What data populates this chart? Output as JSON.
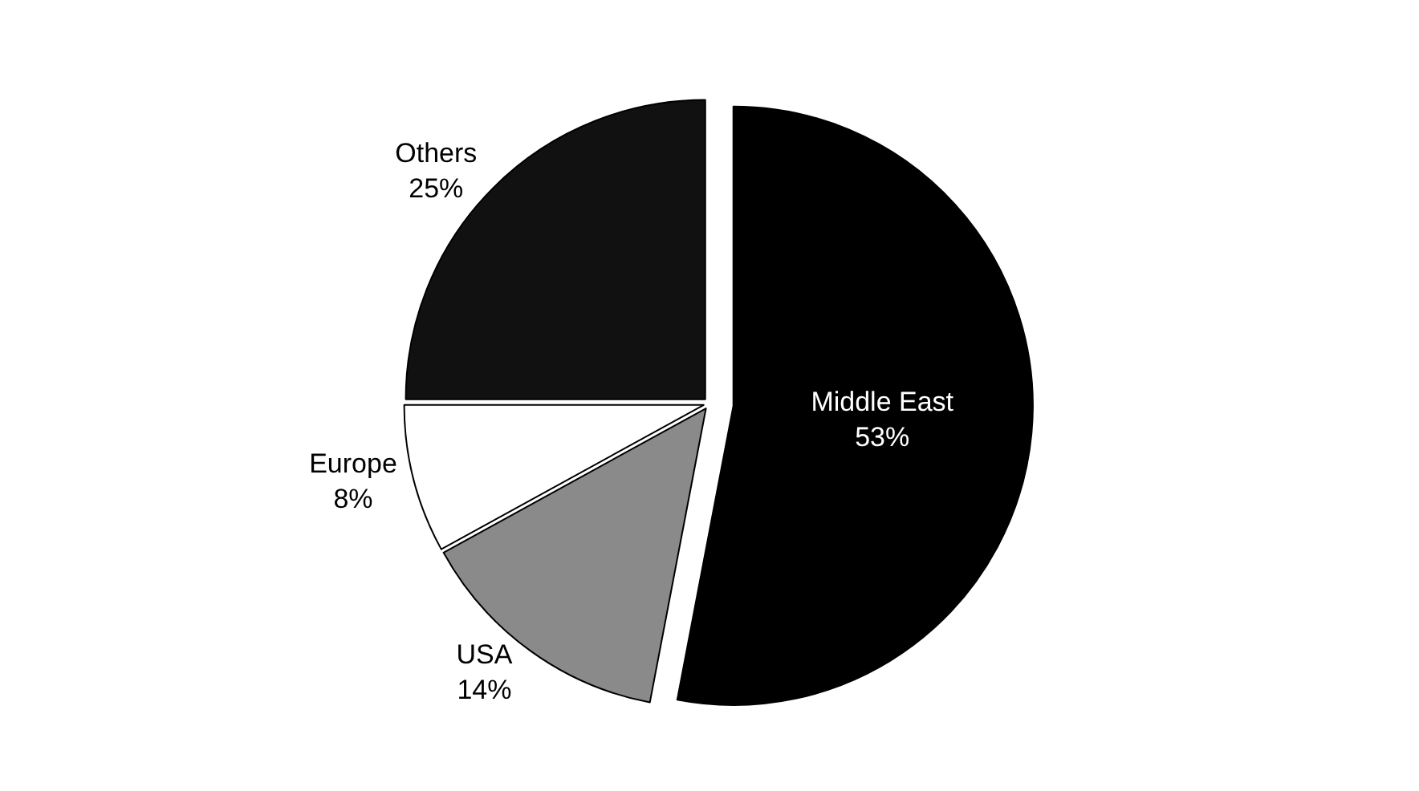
{
  "chart_data": {
    "type": "pie",
    "categories": [
      "Middle East",
      "USA",
      "Europe",
      "Others"
    ],
    "values": [
      53,
      14,
      8,
      25
    ],
    "value_labels": [
      "53%",
      "14%",
      "8%",
      "25%"
    ],
    "colors": [
      "#000000",
      "#8a8a8a",
      "#ffffff",
      "#111111"
    ],
    "legend": false
  }
}
